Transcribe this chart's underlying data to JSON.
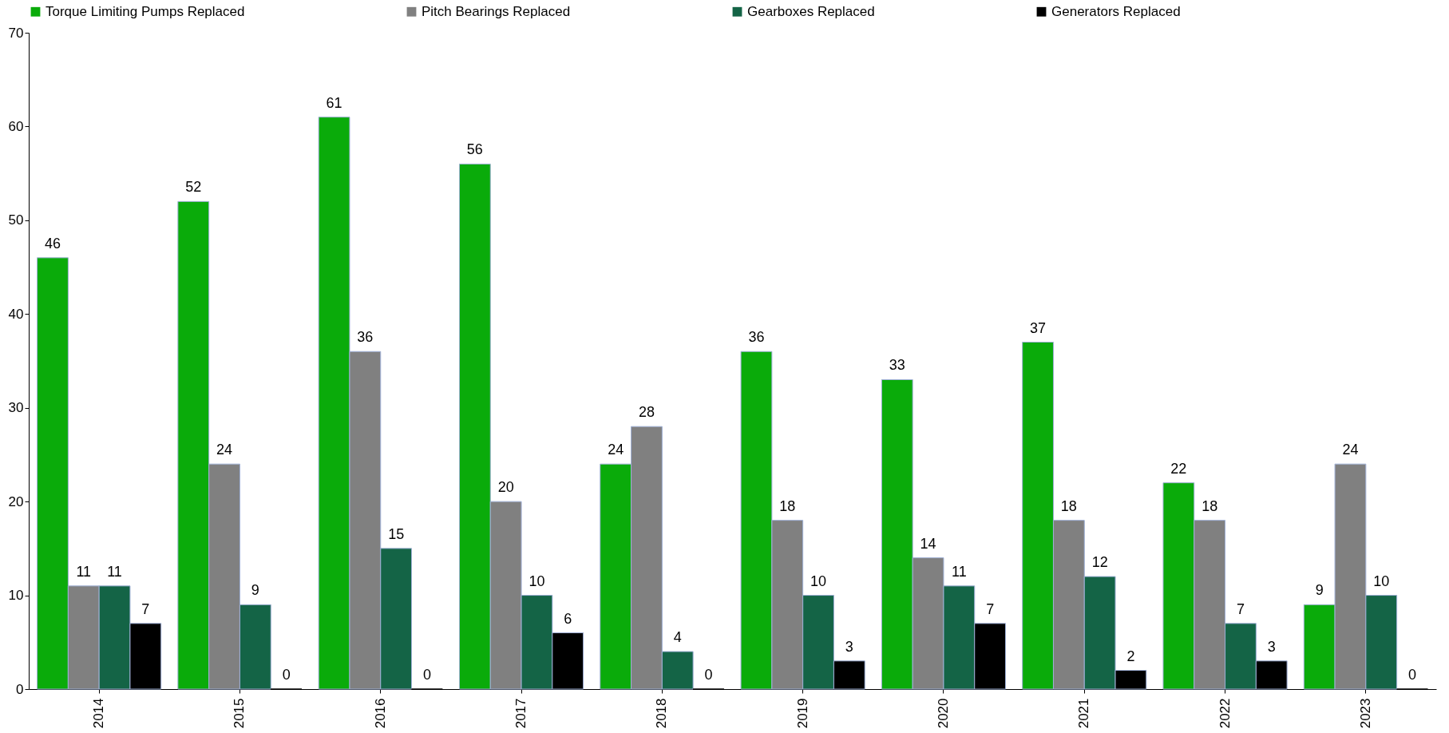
{
  "chart_data": {
    "type": "bar",
    "categories": [
      "2014",
      "2015",
      "2016",
      "2017",
      "2018",
      "2019",
      "2020",
      "2021",
      "2022",
      "2023"
    ],
    "series": [
      {
        "name": "Torque Limiting Pumps Replaced",
        "color": "#0aab0a",
        "values": [
          46,
          52,
          61,
          56,
          24,
          36,
          33,
          37,
          22,
          9
        ]
      },
      {
        "name": "Pitch Bearings Replaced",
        "color": "#808080",
        "values": [
          11,
          24,
          36,
          20,
          28,
          18,
          14,
          18,
          18,
          24
        ]
      },
      {
        "name": "Gearboxes Replaced",
        "color": "#146446",
        "values": [
          11,
          9,
          15,
          10,
          4,
          10,
          11,
          12,
          7,
          10
        ]
      },
      {
        "name": "Generators Replaced",
        "color": "#000000",
        "values": [
          7,
          0,
          0,
          6,
          0,
          3,
          7,
          2,
          3,
          0
        ]
      }
    ],
    "ylim": [
      0,
      70
    ],
    "yticks": [
      0,
      10,
      20,
      30,
      40,
      50,
      60,
      70
    ],
    "grid": false,
    "legend": "top",
    "data_labels": true
  }
}
